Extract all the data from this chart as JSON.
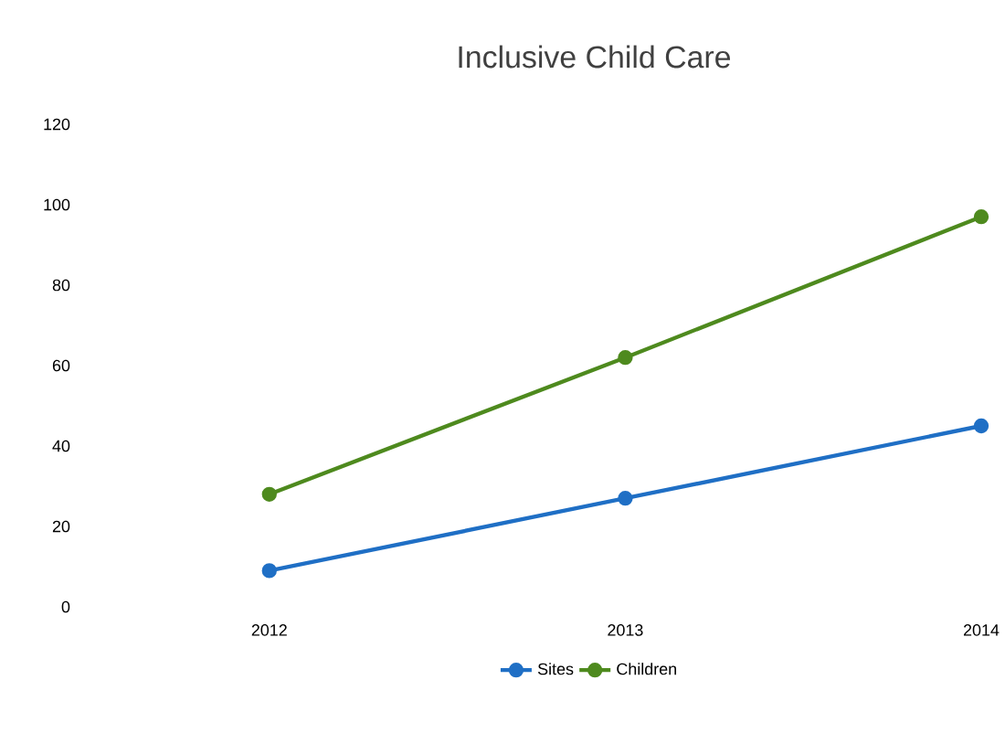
{
  "chart_data": {
    "type": "line",
    "title": "Inclusive Child Care",
    "categories": [
      "2012",
      "2013",
      "2014"
    ],
    "series": [
      {
        "name": "Sites",
        "color": "#1f6fc5",
        "values": [
          9,
          27,
          45
        ]
      },
      {
        "name": "Children",
        "color": "#4e8a1e",
        "values": [
          28,
          62,
          97
        ]
      }
    ],
    "ylim": [
      0,
      120
    ],
    "yticks": [
      0,
      20,
      40,
      60,
      80,
      100,
      120
    ],
    "legend": "bottom",
    "marker": "circle",
    "grid": false
  }
}
